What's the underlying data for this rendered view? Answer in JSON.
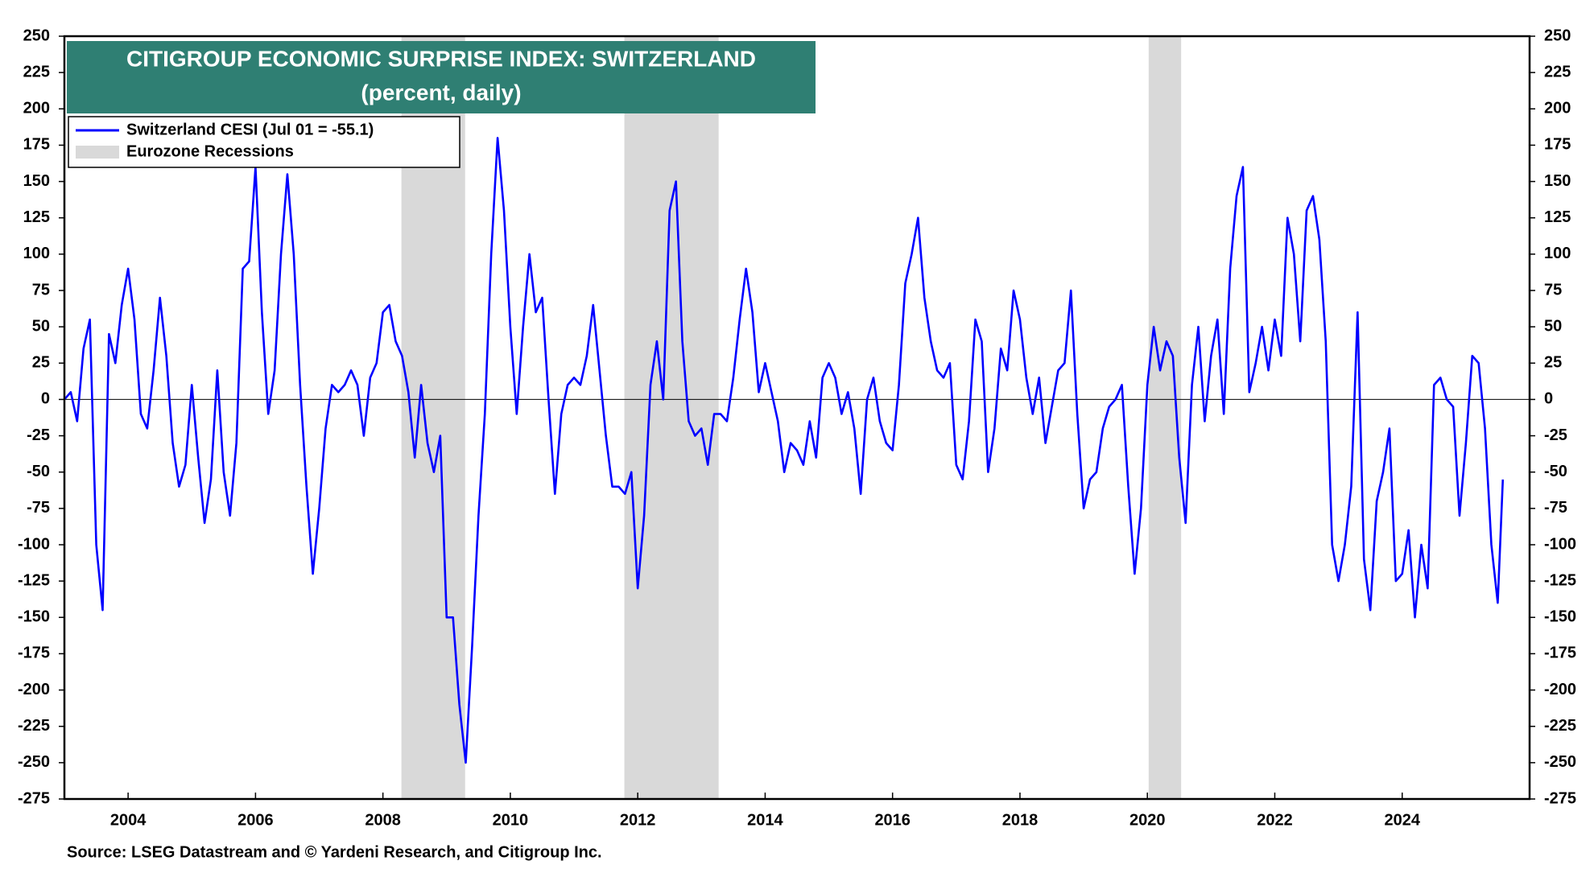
{
  "chart_data": {
    "type": "line",
    "title": "CITIGROUP ECONOMIC SURPRISE INDEX: SWITZERLAND",
    "subtitle": "(percent, daily)",
    "source": "Source: LSEG Datastream and © Yardeni Research, and Citigroup Inc.",
    "xlim": [
      2003,
      2026
    ],
    "xticks": [
      2004,
      2006,
      2008,
      2010,
      2012,
      2014,
      2016,
      2018,
      2020,
      2022,
      2024
    ],
    "ylim": [
      -275,
      250
    ],
    "yticks": [
      -275,
      -250,
      -225,
      -200,
      -175,
      -150,
      -125,
      -100,
      -75,
      -50,
      -25,
      0,
      25,
      50,
      75,
      100,
      125,
      150,
      175,
      200,
      225,
      250
    ],
    "recessions": {
      "name": "Eurozone Recessions",
      "color": "#d9d9d9",
      "ranges": [
        [
          2008.29,
          2009.29
        ],
        [
          2011.79,
          2013.27
        ],
        [
          2020.02,
          2020.53
        ]
      ]
    },
    "x": [
      2003.0,
      2003.1,
      2003.2,
      2003.3,
      2003.4,
      2003.5,
      2003.6,
      2003.7,
      2003.8,
      2003.9,
      2004.0,
      2004.1,
      2004.2,
      2004.3,
      2004.4,
      2004.5,
      2004.6,
      2004.7,
      2004.8,
      2004.9,
      2005.0,
      2005.1,
      2005.2,
      2005.3,
      2005.4,
      2005.5,
      2005.6,
      2005.7,
      2005.8,
      2005.9,
      2006.0,
      2006.1,
      2006.2,
      2006.3,
      2006.4,
      2006.5,
      2006.6,
      2006.7,
      2006.8,
      2006.9,
      2007.0,
      2007.1,
      2007.2,
      2007.3,
      2007.4,
      2007.5,
      2007.6,
      2007.7,
      2007.8,
      2007.9,
      2008.0,
      2008.1,
      2008.2,
      2008.3,
      2008.4,
      2008.5,
      2008.6,
      2008.7,
      2008.8,
      2008.9,
      2009.0,
      2009.1,
      2009.2,
      2009.3,
      2009.4,
      2009.5,
      2009.6,
      2009.7,
      2009.8,
      2009.9,
      2010.0,
      2010.1,
      2010.2,
      2010.3,
      2010.4,
      2010.5,
      2010.6,
      2010.7,
      2010.8,
      2010.9,
      2011.0,
      2011.1,
      2011.2,
      2011.3,
      2011.4,
      2011.5,
      2011.6,
      2011.7,
      2011.8,
      2011.9,
      2012.0,
      2012.1,
      2012.2,
      2012.3,
      2012.4,
      2012.5,
      2012.6,
      2012.7,
      2012.8,
      2012.9,
      2013.0,
      2013.1,
      2013.2,
      2013.3,
      2013.4,
      2013.5,
      2013.6,
      2013.7,
      2013.8,
      2013.9,
      2014.0,
      2014.1,
      2014.2,
      2014.3,
      2014.4,
      2014.5,
      2014.6,
      2014.7,
      2014.8,
      2014.9,
      2015.0,
      2015.1,
      2015.2,
      2015.3,
      2015.4,
      2015.5,
      2015.6,
      2015.7,
      2015.8,
      2015.9,
      2016.0,
      2016.1,
      2016.2,
      2016.3,
      2016.4,
      2016.5,
      2016.6,
      2016.7,
      2016.8,
      2016.9,
      2017.0,
      2017.1,
      2017.2,
      2017.3,
      2017.4,
      2017.5,
      2017.6,
      2017.7,
      2017.8,
      2017.9,
      2018.0,
      2018.1,
      2018.2,
      2018.3,
      2018.4,
      2018.5,
      2018.6,
      2018.7,
      2018.8,
      2018.9,
      2019.0,
      2019.1,
      2019.2,
      2019.3,
      2019.4,
      2019.5,
      2019.6,
      2019.7,
      2019.8,
      2019.9,
      2020.0,
      2020.1,
      2020.2,
      2020.3,
      2020.4,
      2020.5,
      2020.6,
      2020.7,
      2020.8,
      2020.9,
      2021.0,
      2021.1,
      2021.2,
      2021.3,
      2021.4,
      2021.5,
      2021.6,
      2021.7,
      2021.8,
      2021.9,
      2022.0,
      2022.1,
      2022.2,
      2022.3,
      2022.4,
      2022.5,
      2022.6,
      2022.7,
      2022.8,
      2022.9,
      2023.0,
      2023.1,
      2023.2,
      2023.3,
      2023.4,
      2023.5,
      2023.6,
      2023.7,
      2023.8,
      2023.9,
      2024.0,
      2024.1,
      2024.2,
      2024.3,
      2024.4,
      2024.5,
      2024.6,
      2024.7,
      2024.8,
      2024.9,
      2025.0,
      2025.1,
      2025.2,
      2025.3,
      2025.4,
      2025.5,
      2025.58
    ],
    "series": [
      {
        "name": "Switzerland CESI (Jul 01 = -55.1)",
        "color": "#0000ff",
        "values": [
          0,
          5,
          -15,
          35,
          55,
          -100,
          -145,
          45,
          25,
          65,
          90,
          55,
          -10,
          -20,
          20,
          70,
          30,
          -30,
          -60,
          -45,
          10,
          -40,
          -85,
          -55,
          20,
          -50,
          -80,
          -30,
          90,
          95,
          160,
          60,
          -10,
          20,
          100,
          155,
          100,
          10,
          -60,
          -120,
          -75,
          -20,
          10,
          5,
          10,
          20,
          10,
          -25,
          15,
          25,
          60,
          65,
          40,
          30,
          5,
          -40,
          10,
          -30,
          -50,
          -25,
          -150,
          -150,
          -210,
          -250,
          -170,
          -80,
          -10,
          100,
          180,
          130,
          50,
          -10,
          50,
          100,
          60,
          70,
          0,
          -65,
          -10,
          10,
          15,
          10,
          30,
          65,
          20,
          -25,
          -60,
          -60,
          -65,
          -50,
          -130,
          -80,
          10,
          40,
          0,
          130,
          150,
          40,
          -15,
          -25,
          -20,
          -45,
          -10,
          -10,
          -15,
          15,
          55,
          90,
          60,
          5,
          25,
          5,
          -15,
          -50,
          -30,
          -35,
          -45,
          -15,
          -40,
          15,
          25,
          15,
          -10,
          5,
          -20,
          -65,
          0,
          15,
          -15,
          -30,
          -35,
          10,
          80,
          100,
          125,
          70,
          40,
          20,
          15,
          25,
          -45,
          -55,
          -15,
          55,
          40,
          -50,
          -20,
          35,
          20,
          75,
          55,
          15,
          -10,
          15,
          -30,
          -5,
          20,
          25,
          75,
          -10,
          -75,
          -55,
          -50,
          -20,
          -5,
          0,
          10,
          -60,
          -120,
          -75,
          10,
          50,
          20,
          40,
          30,
          -40,
          -85,
          10,
          50,
          -15,
          30,
          55,
          -10,
          90,
          140,
          160,
          5,
          25,
          50,
          20,
          55,
          30,
          125,
          100,
          40,
          130,
          140,
          110,
          40,
          -100,
          -125,
          -100,
          -60,
          60,
          -110,
          -145,
          -70,
          -50,
          -20,
          -125,
          -120,
          -90,
          -150,
          -100,
          -130,
          10,
          15,
          0,
          -5,
          -80,
          -30,
          30,
          25,
          -20,
          -100,
          -140,
          -55.1
        ]
      }
    ]
  }
}
